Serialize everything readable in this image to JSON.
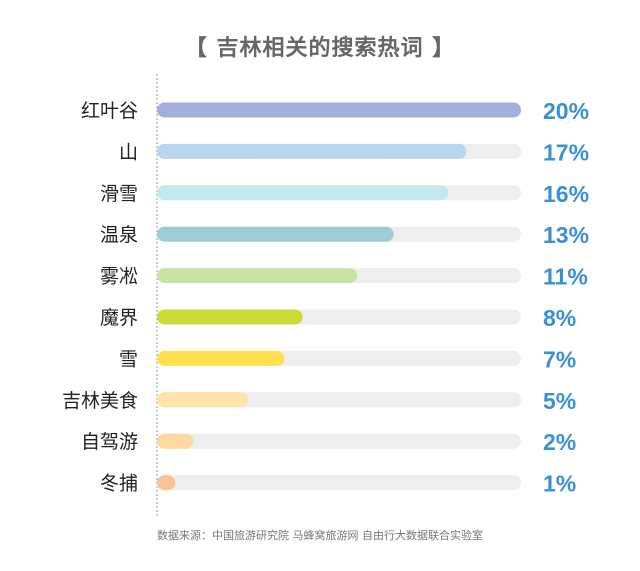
{
  "title": "【 吉林相关的搜索热词 】",
  "source_note": "数据来源：中国旅游研究院 马蜂窝旅游网 自由行大数据联合实验室",
  "colors": {
    "track": "#eeeeee",
    "value_text": "#3a8fd9",
    "label_text": "#222222",
    "axis": "#999999",
    "bars": [
      "#a3afd9",
      "#b8d6ef",
      "#c5e8f0",
      "#9ccdd7",
      "#c8e4a5",
      "#ccd937",
      "#ffe04e",
      "#ffe2a5",
      "#ffd8a0",
      "#f8c395"
    ]
  },
  "chart_data": {
    "type": "bar",
    "orientation": "horizontal",
    "title": "【 吉林相关的搜索热词 】",
    "categories": [
      "红叶谷",
      "山",
      "滑雪",
      "温泉",
      "雾凇",
      "魔界",
      "雪",
      "吉林美食",
      "自驾游",
      "冬捕"
    ],
    "values": [
      20,
      17,
      16,
      13,
      11,
      8,
      7,
      5,
      2,
      1
    ],
    "value_labels": [
      "20%",
      "17%",
      "16%",
      "13%",
      "11%",
      "8%",
      "7%",
      "5%",
      "2%",
      "1%"
    ],
    "unit": "%",
    "xlim": [
      0,
      20
    ],
    "grid": false,
    "legend": "none"
  }
}
